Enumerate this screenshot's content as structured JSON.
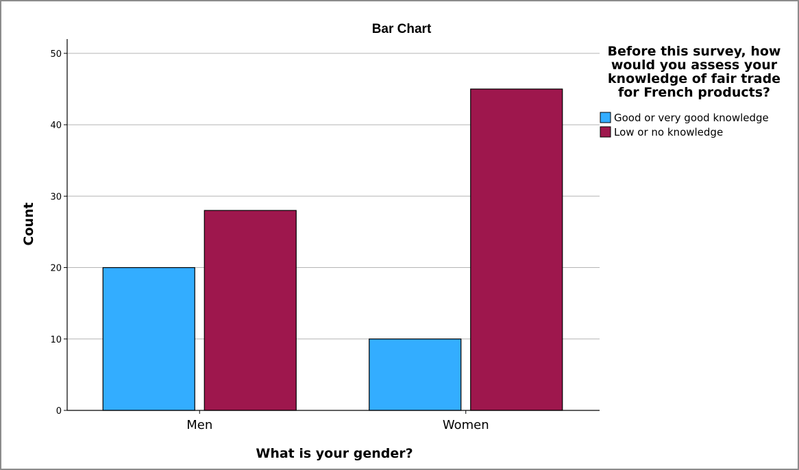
{
  "chart_data": {
    "type": "bar",
    "title": "Bar Chart",
    "xlabel": "What is your gender?",
    "ylabel": "Count",
    "categories": [
      "Men",
      "Women"
    ],
    "ylim": [
      0,
      52
    ],
    "yticks": [
      0,
      10,
      20,
      30,
      40,
      50
    ],
    "ytick_labels": [
      "0",
      "10",
      "20",
      "30",
      "40",
      "50"
    ],
    "grid": true,
    "legend_position": "right",
    "legend_title_lines": [
      "Before this survey, how",
      "would you assess your",
      "knowledge of fair trade",
      "for French products?"
    ],
    "series": [
      {
        "name": "Good or very good knowledge",
        "color": "#33adff",
        "values": [
          20,
          10
        ]
      },
      {
        "name": "Low or no knowledge",
        "color": "#9e174d",
        "values": [
          28,
          45
        ]
      }
    ]
  }
}
